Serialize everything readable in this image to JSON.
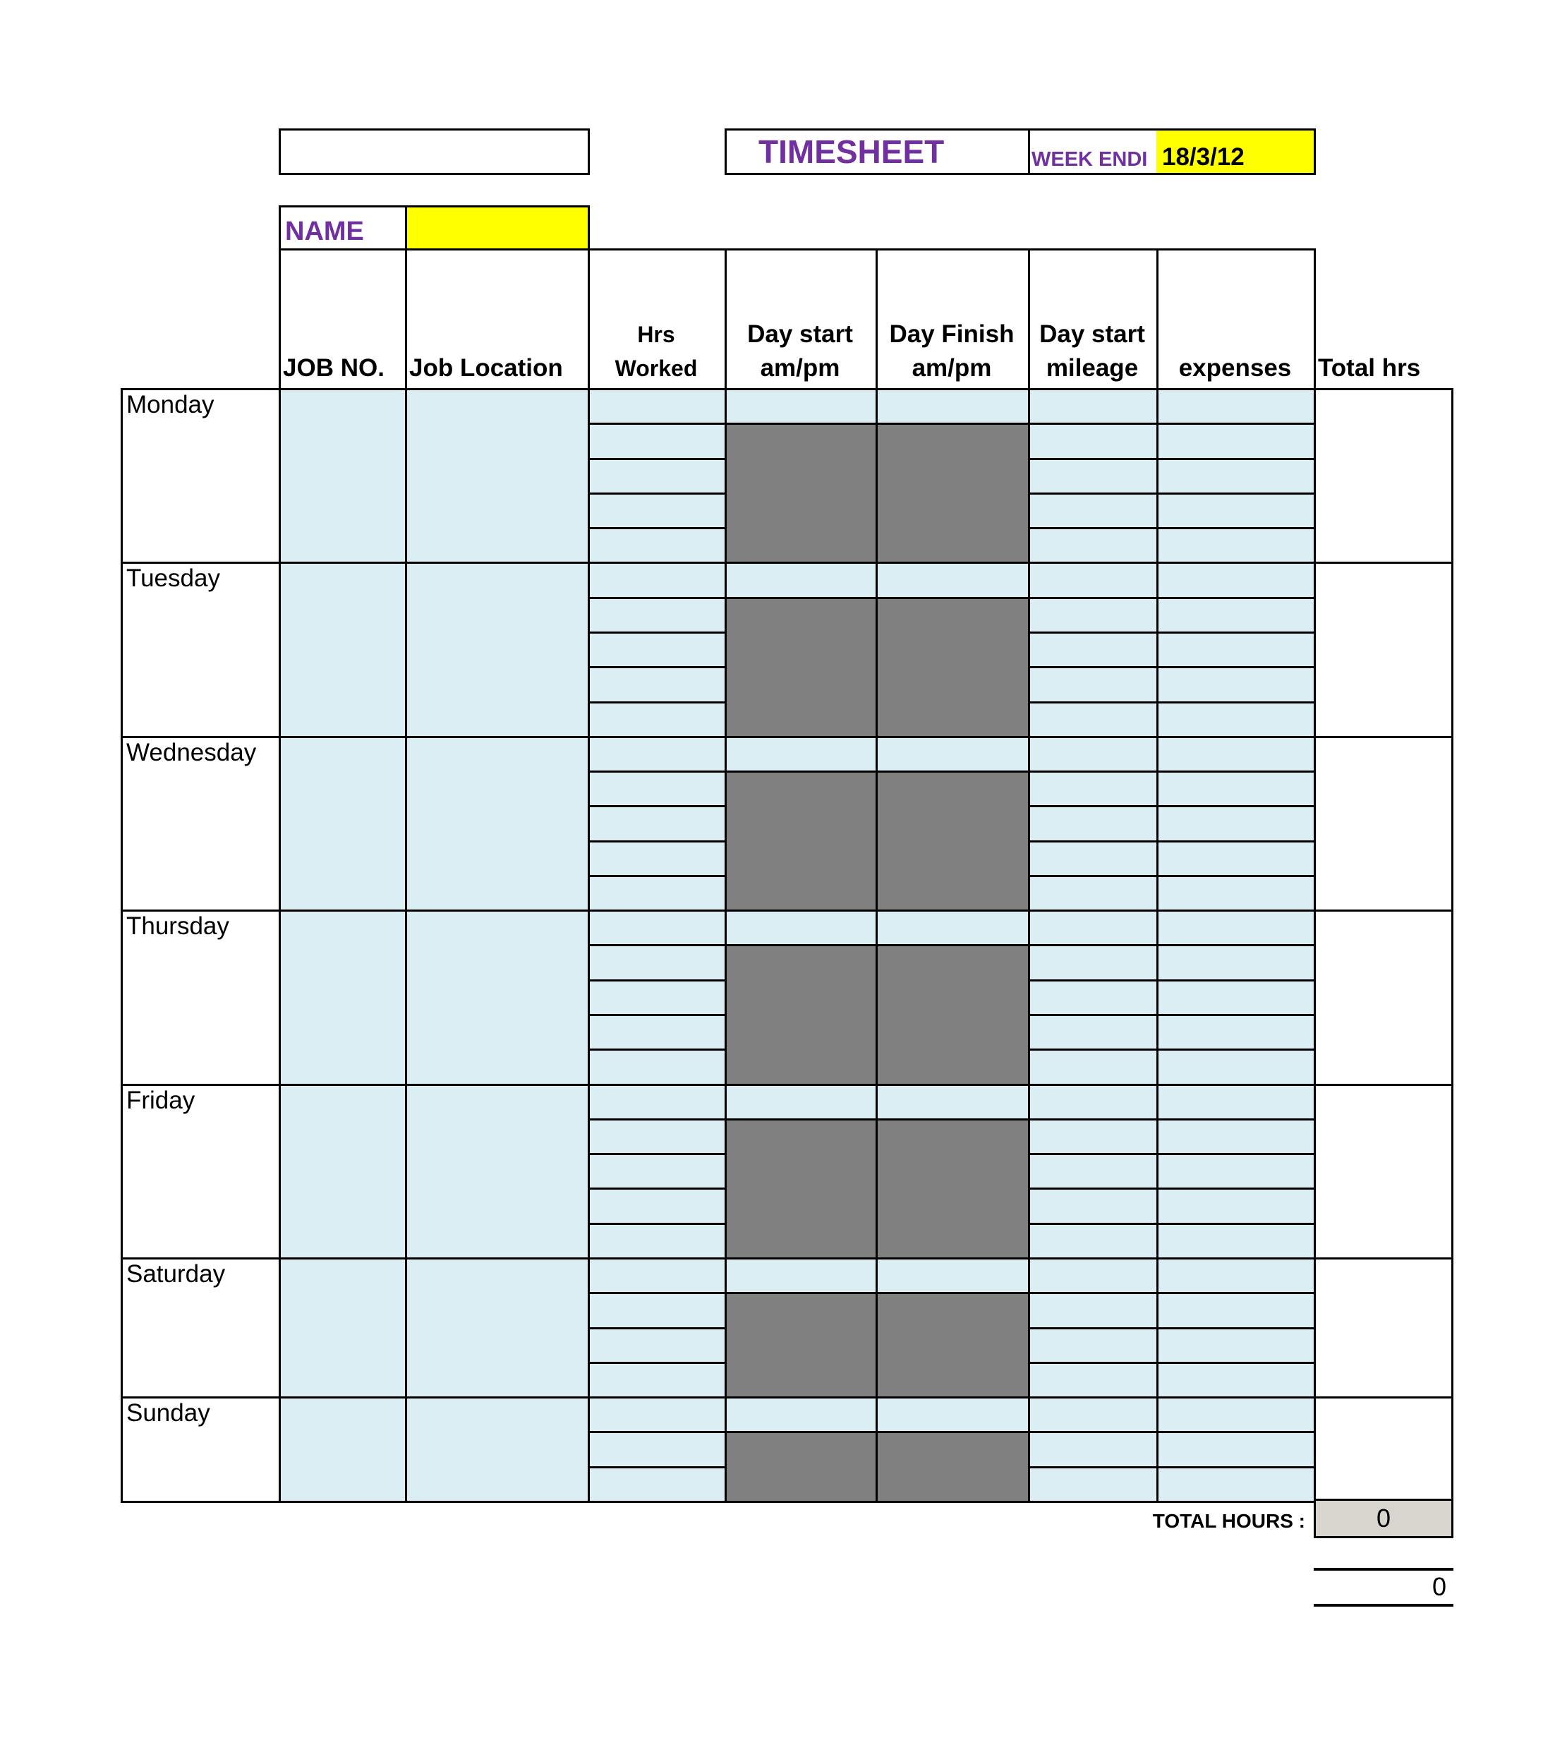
{
  "header": {
    "title": "TIMESHEET",
    "week_ending_label": "WEEK ENDI",
    "week_ending_value": "18/3/12",
    "company_box": "",
    "name_label": "NAME",
    "name_value": ""
  },
  "columns": [
    {
      "line1": "",
      "line2": "JOB NO."
    },
    {
      "line1": "",
      "line2": "Job Location"
    },
    {
      "line1": "Hrs",
      "line2": "Worked"
    },
    {
      "line1": "Day start",
      "line2": "am/pm"
    },
    {
      "line1": "Day Finish",
      "line2": "am/pm"
    },
    {
      "line1": "Day start",
      "line2": "mileage"
    },
    {
      "line1": "",
      "line2": "expenses"
    },
    {
      "line1": "",
      "line2": "Total hrs"
    }
  ],
  "days": [
    "Monday",
    "Tuesday",
    "Wednesday",
    "Thursday",
    "Friday",
    "Saturday",
    "Sunday"
  ],
  "totals": {
    "label": "TOTAL HOURS :",
    "total_hours": "0",
    "secondary_total": "0"
  },
  "colors": {
    "accent_purple": "#7030a0",
    "input_blue": "#dbeef4",
    "highlight_yellow": "#ffff00",
    "blocked_gray": "#808080",
    "total_gray": "#d8d5cf"
  }
}
